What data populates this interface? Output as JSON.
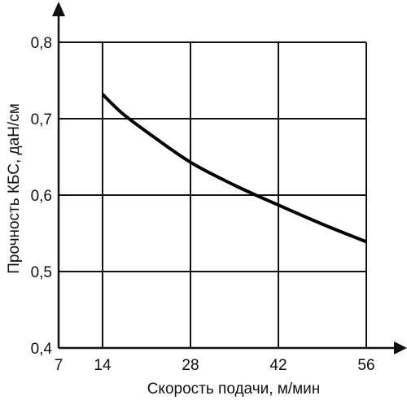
{
  "chart_data": {
    "type": "line",
    "title": "",
    "xlabel": "Скорость подачи, м/мин",
    "ylabel": "Прочность КБС, даН/см",
    "xlim": [
      7,
      56
    ],
    "ylim": [
      0.4,
      0.8
    ],
    "x_ticks": [
      7,
      14,
      28,
      42,
      56
    ],
    "x_tick_labels": [
      "7",
      "14",
      "28",
      "42",
      "56"
    ],
    "y_ticks": [
      0.4,
      0.5,
      0.6,
      0.7,
      0.8
    ],
    "y_tick_labels": [
      "0,4",
      "0,5",
      "0,6",
      "0,7",
      "0,8"
    ],
    "grid": true,
    "series": [
      {
        "x": [
          14,
          17,
          21,
          28,
          35,
          42,
          49,
          56
        ],
        "y": [
          0.732,
          0.708,
          0.683,
          0.643,
          0.613,
          0.587,
          0.562,
          0.539
        ]
      }
    ]
  }
}
